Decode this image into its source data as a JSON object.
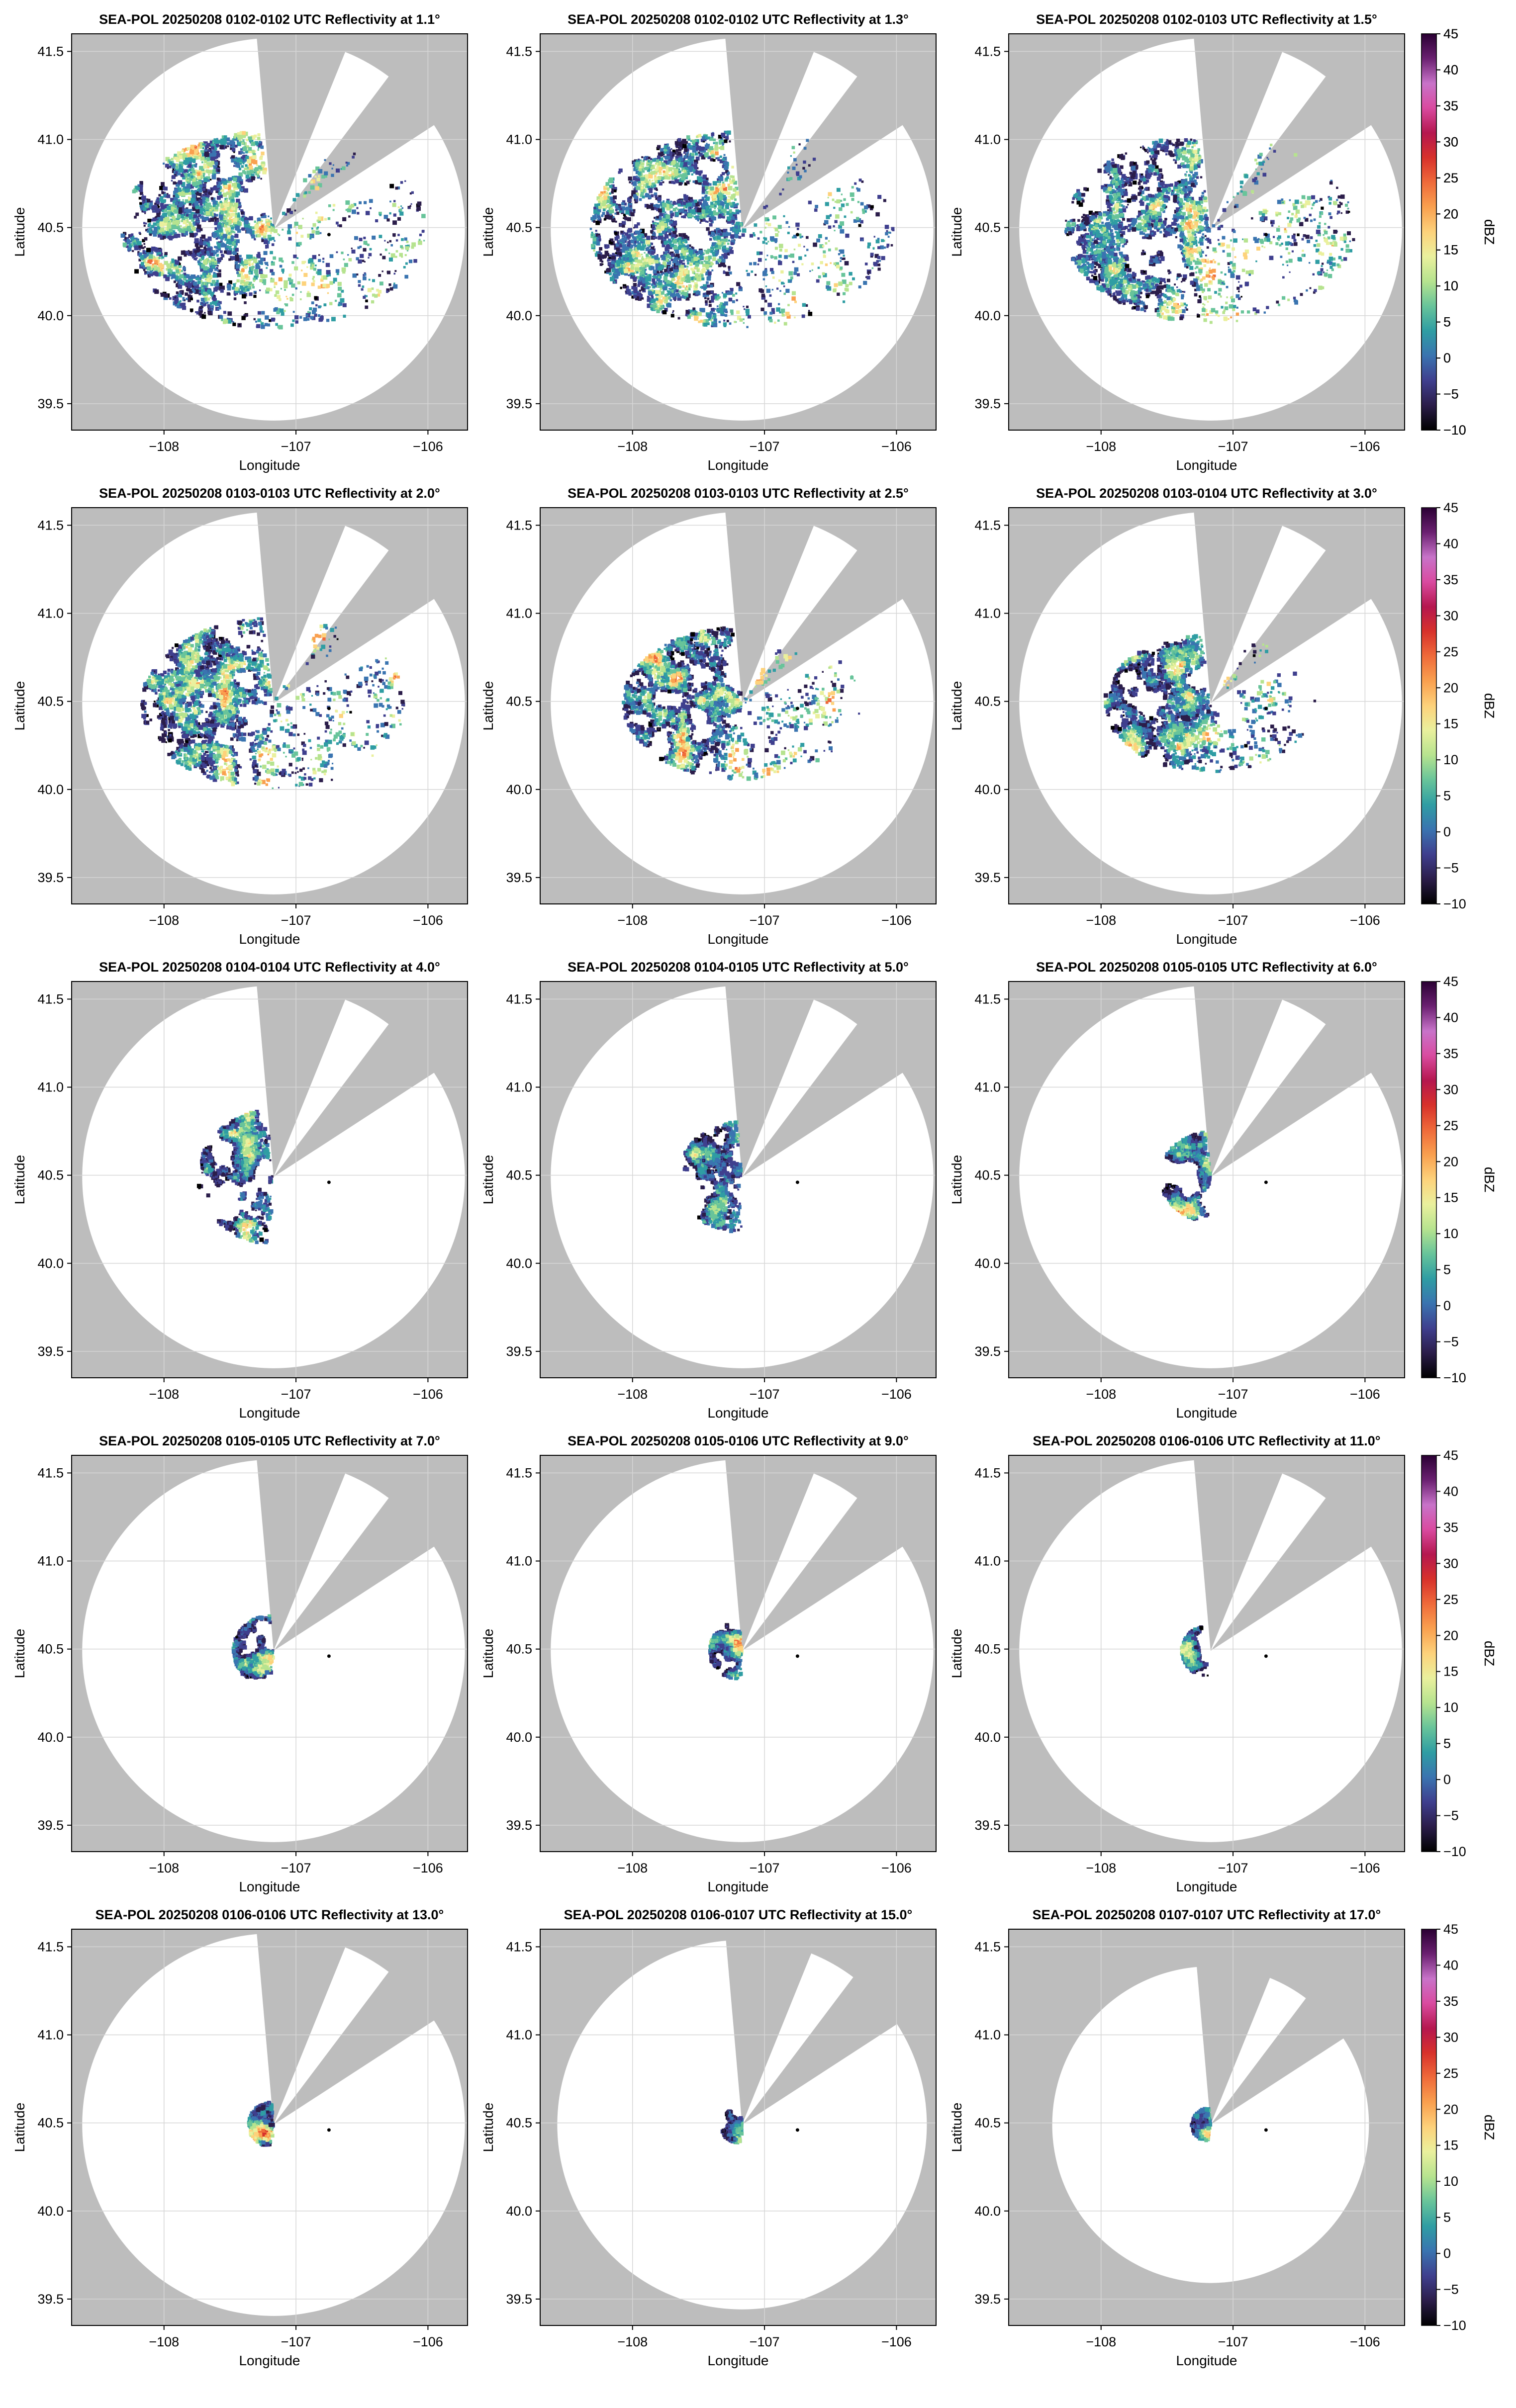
{
  "figure": {
    "marker_color": "#000000",
    "missing_color": "#bdbdbd",
    "no_echo_color": "#ffffff",
    "colorbar": {
      "label": "dBZ",
      "ticks": [
        "45",
        "40",
        "35",
        "30",
        "25",
        "20",
        "15",
        "10",
        "5",
        "0",
        "−5",
        "−10"
      ]
    },
    "colormap": [
      "#000000",
      "#2b1d4a",
      "#3f3f8e",
      "#3a74b0",
      "#2f9da3",
      "#68c49a",
      "#b6e38f",
      "#eaf09d",
      "#fdd27b",
      "#f9a04f",
      "#ef6a3a",
      "#d7312b",
      "#b5174f",
      "#d94ba0",
      "#c873c9",
      "#6a2070",
      "#2a0033"
    ]
  },
  "chart_data": [
    {
      "type": "heatmap",
      "title": "SEA-POL 20250208 0102-0102 UTC Reflectivity at 1.1°",
      "xlabel": "Longitude",
      "ylabel": "Latitude",
      "x_ticks": [
        "−108",
        "−107",
        "−106"
      ],
      "y_ticks": [
        "41.5",
        "41.0",
        "40.5",
        "40.0",
        "39.5"
      ],
      "xlim": [
        -108.7,
        -105.7
      ],
      "ylim": [
        39.35,
        41.6
      ],
      "value_range_dbz": [
        -10,
        45
      ],
      "radar_site": [
        -107.17,
        40.49
      ],
      "marker": [
        -106.75,
        40.46
      ],
      "max_range_deg_lon": 1.45,
      "echo_extent_deg": 1.15,
      "colorbar": true
    },
    {
      "type": "heatmap",
      "title": "SEA-POL 20250208 0102-0102 UTC Reflectivity at 1.3°",
      "xlabel": "Longitude",
      "ylabel": "Latitude",
      "x_ticks": [
        "−108",
        "−107",
        "−106"
      ],
      "y_ticks": [
        "41.5",
        "41.0",
        "40.5",
        "40.0",
        "39.5"
      ],
      "xlim": [
        -108.7,
        -105.7
      ],
      "ylim": [
        39.35,
        41.6
      ],
      "value_range_dbz": [
        -10,
        45
      ],
      "radar_site": [
        -107.17,
        40.49
      ],
      "marker": [
        -106.75,
        40.46
      ],
      "max_range_deg_lon": 1.45,
      "echo_extent_deg": 1.15,
      "colorbar": false
    },
    {
      "type": "heatmap",
      "title": "SEA-POL 20250208 0102-0103 UTC Reflectivity at 1.5°",
      "xlabel": "Longitude",
      "ylabel": "Latitude",
      "x_ticks": [
        "−108",
        "−107",
        "−106"
      ],
      "y_ticks": [
        "41.5",
        "41.0",
        "40.5",
        "40.0",
        "39.5"
      ],
      "xlim": [
        -108.7,
        -105.7
      ],
      "ylim": [
        39.35,
        41.6
      ],
      "value_range_dbz": [
        -10,
        45
      ],
      "radar_site": [
        -107.17,
        40.49
      ],
      "marker": [
        -106.75,
        40.46
      ],
      "max_range_deg_lon": 1.45,
      "echo_extent_deg": 1.1,
      "colorbar": true
    },
    {
      "type": "heatmap",
      "title": "SEA-POL 20250208 0103-0103 UTC Reflectivity at 2.0°",
      "xlabel": "Longitude",
      "ylabel": "Latitude",
      "x_ticks": [
        "−108",
        "−107",
        "−106"
      ],
      "y_ticks": [
        "41.5",
        "41.0",
        "40.5",
        "40.0",
        "39.5"
      ],
      "xlim": [
        -108.7,
        -105.7
      ],
      "ylim": [
        39.35,
        41.6
      ],
      "value_range_dbz": [
        -10,
        45
      ],
      "radar_site": [
        -107.17,
        40.49
      ],
      "marker": [
        -106.75,
        40.46
      ],
      "max_range_deg_lon": 1.45,
      "echo_extent_deg": 1.0,
      "colorbar": false
    },
    {
      "type": "heatmap",
      "title": "SEA-POL 20250208 0103-0103 UTC Reflectivity at 2.5°",
      "xlabel": "Longitude",
      "ylabel": "Latitude",
      "x_ticks": [
        "−108",
        "−107",
        "−106"
      ],
      "y_ticks": [
        "41.5",
        "41.0",
        "40.5",
        "40.0",
        "39.5"
      ],
      "xlim": [
        -108.7,
        -105.7
      ],
      "ylim": [
        39.35,
        41.6
      ],
      "value_range_dbz": [
        -10,
        45
      ],
      "radar_site": [
        -107.17,
        40.49
      ],
      "marker": [
        -106.75,
        40.46
      ],
      "max_range_deg_lon": 1.45,
      "echo_extent_deg": 0.9,
      "colorbar": false
    },
    {
      "type": "heatmap",
      "title": "SEA-POL 20250208 0103-0104 UTC Reflectivity at 3.0°",
      "xlabel": "Longitude",
      "ylabel": "Latitude",
      "x_ticks": [
        "−108",
        "−107",
        "−106"
      ],
      "y_ticks": [
        "41.5",
        "41.0",
        "40.5",
        "40.0",
        "39.5"
      ],
      "xlim": [
        -108.7,
        -105.7
      ],
      "ylim": [
        39.35,
        41.6
      ],
      "value_range_dbz": [
        -10,
        45
      ],
      "radar_site": [
        -107.17,
        40.49
      ],
      "marker": [
        -106.75,
        40.46
      ],
      "max_range_deg_lon": 1.45,
      "echo_extent_deg": 0.8,
      "colorbar": true
    },
    {
      "type": "heatmap",
      "title": "SEA-POL 20250208 0104-0104 UTC Reflectivity at 4.0°",
      "xlabel": "Longitude",
      "ylabel": "Latitude",
      "x_ticks": [
        "−108",
        "−107",
        "−106"
      ],
      "y_ticks": [
        "41.5",
        "41.0",
        "40.5",
        "40.0",
        "39.5"
      ],
      "xlim": [
        -108.7,
        -105.7
      ],
      "ylim": [
        39.35,
        41.6
      ],
      "value_range_dbz": [
        -10,
        45
      ],
      "radar_site": [
        -107.17,
        40.49
      ],
      "marker": [
        -106.75,
        40.46
      ],
      "max_range_deg_lon": 1.45,
      "echo_extent_deg": 0.6,
      "colorbar": false
    },
    {
      "type": "heatmap",
      "title": "SEA-POL 20250208 0104-0105 UTC Reflectivity at 5.0°",
      "xlabel": "Longitude",
      "ylabel": "Latitude",
      "x_ticks": [
        "−108",
        "−107",
        "−106"
      ],
      "y_ticks": [
        "41.5",
        "41.0",
        "40.5",
        "40.0",
        "39.5"
      ],
      "xlim": [
        -108.7,
        -105.7
      ],
      "ylim": [
        39.35,
        41.6
      ],
      "value_range_dbz": [
        -10,
        45
      ],
      "radar_site": [
        -107.17,
        40.49
      ],
      "marker": [
        -106.75,
        40.46
      ],
      "max_range_deg_lon": 1.45,
      "echo_extent_deg": 0.5,
      "colorbar": false
    },
    {
      "type": "heatmap",
      "title": "SEA-POL 20250208 0105-0105 UTC Reflectivity at 6.0°",
      "xlabel": "Longitude",
      "ylabel": "Latitude",
      "x_ticks": [
        "−108",
        "−107",
        "−106"
      ],
      "y_ticks": [
        "41.5",
        "41.0",
        "40.5",
        "40.0",
        "39.5"
      ],
      "xlim": [
        -108.7,
        -105.7
      ],
      "ylim": [
        39.35,
        41.6
      ],
      "value_range_dbz": [
        -10,
        45
      ],
      "radar_site": [
        -107.17,
        40.49
      ],
      "marker": [
        -106.75,
        40.46
      ],
      "max_range_deg_lon": 1.45,
      "echo_extent_deg": 0.4,
      "colorbar": true
    },
    {
      "type": "heatmap",
      "title": "SEA-POL 20250208 0105-0105 UTC Reflectivity at 7.0°",
      "xlabel": "Longitude",
      "ylabel": "Latitude",
      "x_ticks": [
        "−108",
        "−107",
        "−106"
      ],
      "y_ticks": [
        "41.5",
        "41.0",
        "40.5",
        "40.0",
        "39.5"
      ],
      "xlim": [
        -108.7,
        -105.7
      ],
      "ylim": [
        39.35,
        41.6
      ],
      "value_range_dbz": [
        -10,
        45
      ],
      "radar_site": [
        -107.17,
        40.49
      ],
      "marker": [
        -106.75,
        40.46
      ],
      "max_range_deg_lon": 1.45,
      "echo_extent_deg": 0.32,
      "colorbar": false
    },
    {
      "type": "heatmap",
      "title": "SEA-POL 20250208 0105-0106 UTC Reflectivity at 9.0°",
      "xlabel": "Longitude",
      "ylabel": "Latitude",
      "x_ticks": [
        "−108",
        "−107",
        "−106"
      ],
      "y_ticks": [
        "41.5",
        "41.0",
        "40.5",
        "40.0",
        "39.5"
      ],
      "xlim": [
        -108.7,
        -105.7
      ],
      "ylim": [
        39.35,
        41.6
      ],
      "value_range_dbz": [
        -10,
        45
      ],
      "radar_site": [
        -107.17,
        40.49
      ],
      "marker": [
        -106.75,
        40.46
      ],
      "max_range_deg_lon": 1.45,
      "echo_extent_deg": 0.26,
      "colorbar": false
    },
    {
      "type": "heatmap",
      "title": "SEA-POL 20250208 0106-0106 UTC Reflectivity at 11.0°",
      "xlabel": "Longitude",
      "ylabel": "Latitude",
      "x_ticks": [
        "−108",
        "−107",
        "−106"
      ],
      "y_ticks": [
        "41.5",
        "41.0",
        "40.5",
        "40.0",
        "39.5"
      ],
      "xlim": [
        -108.7,
        -105.7
      ],
      "ylim": [
        39.35,
        41.6
      ],
      "value_range_dbz": [
        -10,
        45
      ],
      "radar_site": [
        -107.17,
        40.49
      ],
      "marker": [
        -106.75,
        40.46
      ],
      "max_range_deg_lon": 1.45,
      "echo_extent_deg": 0.23,
      "colorbar": true
    },
    {
      "type": "heatmap",
      "title": "SEA-POL 20250208 0106-0106 UTC Reflectivity at 13.0°",
      "xlabel": "Longitude",
      "ylabel": "Latitude",
      "x_ticks": [
        "−108",
        "−107",
        "−106"
      ],
      "y_ticks": [
        "41.5",
        "41.0",
        "40.5",
        "40.0",
        "39.5"
      ],
      "xlim": [
        -108.7,
        -105.7
      ],
      "ylim": [
        39.35,
        41.6
      ],
      "value_range_dbz": [
        -10,
        45
      ],
      "radar_site": [
        -107.17,
        40.49
      ],
      "marker": [
        -106.75,
        40.46
      ],
      "max_range_deg_lon": 1.45,
      "echo_extent_deg": 0.2,
      "colorbar": false
    },
    {
      "type": "heatmap",
      "title": "SEA-POL 20250208 0106-0107 UTC Reflectivity at 15.0°",
      "xlabel": "Longitude",
      "ylabel": "Latitude",
      "x_ticks": [
        "−108",
        "−107",
        "−106"
      ],
      "y_ticks": [
        "41.5",
        "41.0",
        "40.5",
        "40.0",
        "39.5"
      ],
      "xlim": [
        -108.7,
        -105.7
      ],
      "ylim": [
        39.35,
        41.6
      ],
      "value_range_dbz": [
        -10,
        45
      ],
      "radar_site": [
        -107.17,
        40.49
      ],
      "marker": [
        -106.75,
        40.46
      ],
      "max_range_deg_lon": 1.4,
      "echo_extent_deg": 0.17,
      "colorbar": false
    },
    {
      "type": "heatmap",
      "title": "SEA-POL 20250208 0107-0107 UTC Reflectivity at 17.0°",
      "xlabel": "Longitude",
      "ylabel": "Latitude",
      "x_ticks": [
        "−108",
        "−107",
        "−106"
      ],
      "y_ticks": [
        "41.5",
        "41.0",
        "40.5",
        "40.0",
        "39.5"
      ],
      "xlim": [
        -108.7,
        -105.7
      ],
      "ylim": [
        39.35,
        41.6
      ],
      "value_range_dbz": [
        -10,
        45
      ],
      "radar_site": [
        -107.17,
        40.49
      ],
      "marker": [
        -106.75,
        40.46
      ],
      "max_range_deg_lon": 1.2,
      "echo_extent_deg": 0.15,
      "colorbar": true
    }
  ]
}
